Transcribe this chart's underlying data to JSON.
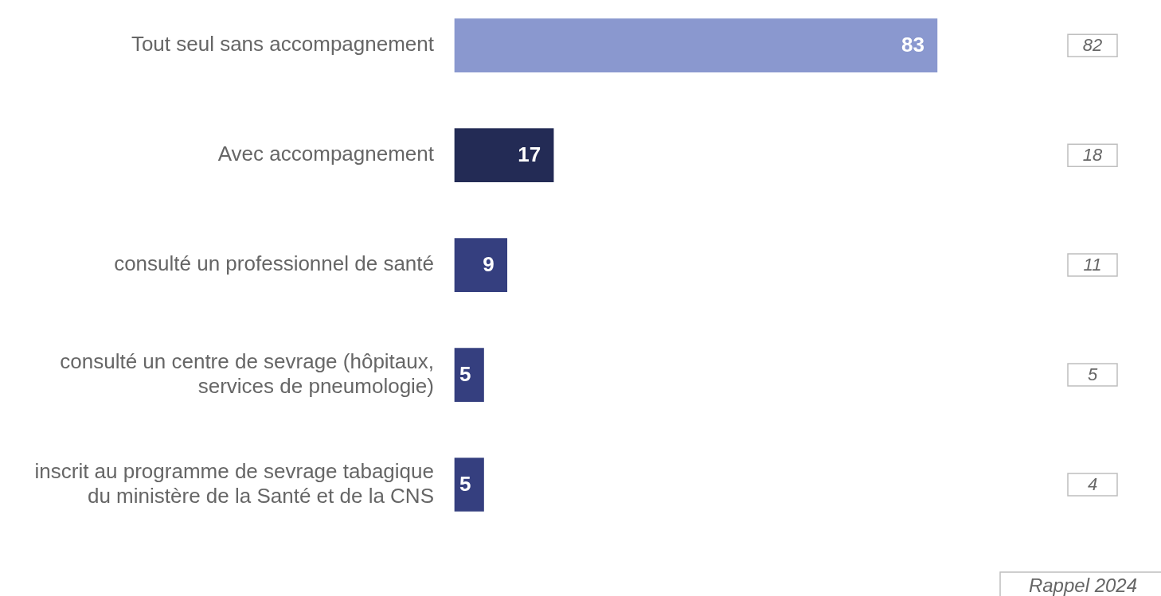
{
  "chart_data": {
    "type": "bar",
    "orientation": "horizontal",
    "categories": [
      "Tout seul sans accompagnement",
      "Avec accompagnement",
      "consulté un professionnel de santé",
      "consulté un centre de sevrage (hôpitaux, services de pneumologie)",
      "inscrit au programme de sevrage tabagique du ministère de la Santé et de la CNS"
    ],
    "values": [
      83,
      17,
      9,
      5,
      5
    ],
    "colors": [
      "#8a98cf",
      "#232b55",
      "#353f7f",
      "#353f7f",
      "#353f7f"
    ],
    "data_labels": true,
    "annotations": [
      "82",
      "18",
      "11",
      "5",
      "4",
      "Rappel 2024"
    ],
    "legend": false
  }
}
